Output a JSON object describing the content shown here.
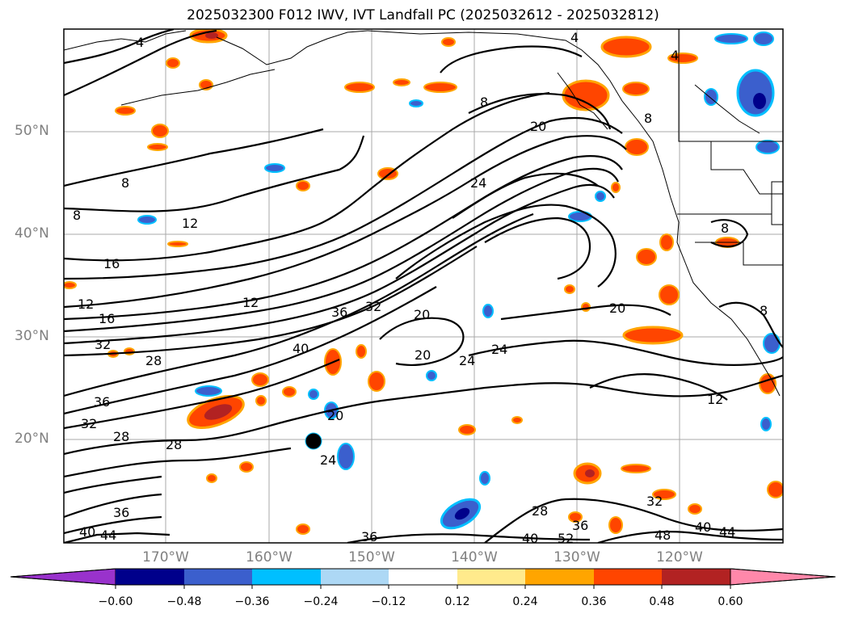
{
  "title": "2025032300 F012 IWV, IVT Landfall PC (2025032612 - 2025032812)",
  "lat_labels": [
    "50°N",
    "40°N",
    "30°N",
    "20°N"
  ],
  "lon_labels": [
    "170°W",
    "160°W",
    "150°W",
    "140°W",
    "130°W",
    "120°W"
  ],
  "colorbar": {
    "ticks": [
      "−0.60",
      "−0.48",
      "−0.36",
      "−0.24",
      "−0.12",
      "0.12",
      "0.24",
      "0.36",
      "0.48",
      "0.60"
    ],
    "colors": [
      "#9932cc",
      "#00008b",
      "#3b5fcd",
      "#00bfff",
      "#add8f5",
      "#ffffff",
      "#ffea8c",
      "#ffa500",
      "#ff4500",
      "#b22222",
      "#ff88aa"
    ]
  },
  "contour_labels": [
    "4",
    "4",
    "4",
    "8",
    "8",
    "8",
    "8",
    "8",
    "8",
    "12",
    "12",
    "12",
    "12",
    "16",
    "16",
    "20",
    "20",
    "20",
    "20",
    "20",
    "24",
    "24",
    "24",
    "24",
    "28",
    "28",
    "28",
    "28",
    "32",
    "32",
    "32",
    "32",
    "36",
    "36",
    "36",
    "36",
    "36",
    "40",
    "40",
    "40",
    "40",
    "44",
    "44",
    "48",
    "52"
  ]
}
